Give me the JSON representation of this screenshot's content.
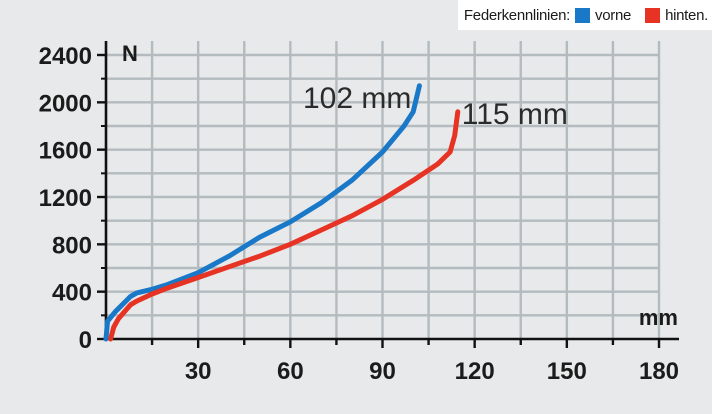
{
  "legend": {
    "title": "Federkennlinien:",
    "items": [
      {
        "label": "vorne",
        "color": "#1a78c8"
      },
      {
        "label": "hinten.",
        "color": "#e63323"
      }
    ]
  },
  "chart_data": {
    "type": "line",
    "xlabel": "mm",
    "ylabel": "N",
    "xlim": [
      0,
      180
    ],
    "ylim": [
      0,
      2400
    ],
    "x_ticks": [
      30,
      60,
      90,
      120,
      150,
      180
    ],
    "y_ticks": [
      0,
      400,
      800,
      1200,
      1600,
      2000,
      2400
    ],
    "x_gridlines": [
      0,
      15,
      30,
      45,
      60,
      75,
      90,
      105,
      120,
      135,
      150,
      165,
      180
    ],
    "y_gridlines": [
      200,
      400,
      600,
      800,
      1000,
      1200,
      1400,
      1600,
      1800,
      2000,
      2200,
      2400
    ],
    "grid": true,
    "legend_position": "top-right",
    "series": [
      {
        "label": "102 mm",
        "color": "#1a78c8",
        "points": [
          [
            0,
            0
          ],
          [
            0.5,
            150
          ],
          [
            3,
            230
          ],
          [
            8,
            360
          ],
          [
            10,
            390
          ],
          [
            15,
            420
          ],
          [
            20,
            460
          ],
          [
            30,
            560
          ],
          [
            40,
            700
          ],
          [
            50,
            860
          ],
          [
            60,
            990
          ],
          [
            70,
            1150
          ],
          [
            80,
            1340
          ],
          [
            90,
            1580
          ],
          [
            97,
            1800
          ],
          [
            100,
            1920
          ],
          [
            102,
            2140
          ]
        ]
      },
      {
        "label": "115 mm",
        "color": "#e63323",
        "points": [
          [
            1.5,
            0
          ],
          [
            2.5,
            100
          ],
          [
            4,
            170
          ],
          [
            8,
            290
          ],
          [
            10,
            320
          ],
          [
            15,
            380
          ],
          [
            20,
            430
          ],
          [
            30,
            520
          ],
          [
            40,
            610
          ],
          [
            50,
            700
          ],
          [
            60,
            800
          ],
          [
            70,
            920
          ],
          [
            80,
            1040
          ],
          [
            90,
            1180
          ],
          [
            100,
            1340
          ],
          [
            108,
            1480
          ],
          [
            112,
            1580
          ],
          [
            113.5,
            1720
          ],
          [
            114.5,
            1920
          ]
        ]
      }
    ]
  }
}
